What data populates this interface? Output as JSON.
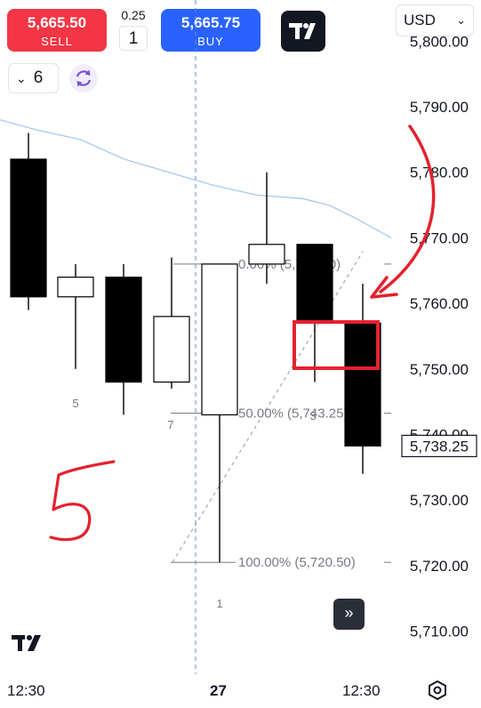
{
  "trade": {
    "sell_price": "5,665.50",
    "sell_label": "SELL",
    "buy_price": "5,665.75",
    "buy_label": "BUY",
    "spread": "0.25",
    "quantity": "1"
  },
  "currency": {
    "value": "USD"
  },
  "interval": {
    "value": "6"
  },
  "icons": {
    "logo": "tradingview-logo-icon",
    "refresh": "refresh-icon",
    "goto_realtime": "double-chevron-right-icon",
    "settings": "gear-icon",
    "dropdown": "chevron-down-icon"
  },
  "time_axis": {
    "left": "12:30",
    "center": "27",
    "right": "12:30"
  },
  "colors": {
    "sell": "#f23645",
    "buy": "#2962ff",
    "annotation": "#e5212f",
    "moving_average": "#a9c7ef",
    "fib_lines": "#787b86"
  },
  "chart_data": {
    "type": "candlestick",
    "ylim": [
      5703,
      5803
    ],
    "price_ticks": [
      "5,790.00",
      "5,780.00",
      "5,770.00",
      "5,760.00",
      "5,750.00",
      "5,740.00",
      "5,730.00",
      "5,720.00",
      "5,710.00"
    ],
    "price_tick_values": [
      5790,
      5780,
      5770,
      5760,
      5750,
      5740,
      5730,
      5720,
      5710
    ],
    "top_tick_partial": "5,800.00",
    "current_price": {
      "label": "5,738.25",
      "value": 5738.25
    },
    "candles": [
      {
        "open": 5782,
        "close": 5761,
        "high": 5786,
        "low": 5759,
        "bearish": true
      },
      {
        "open": 5761,
        "close": 5764,
        "high": 5766,
        "low": 5750,
        "bearish": false
      },
      {
        "open": 5764,
        "close": 5748,
        "high": 5766,
        "low": 5743,
        "bearish": true
      },
      {
        "open": 5748,
        "close": 5758,
        "high": 5767,
        "low": 5747,
        "bearish": false
      },
      {
        "open": 5743,
        "close": 5766,
        "high": 5766,
        "low": 5720.5,
        "bearish": false
      },
      {
        "open": 5766,
        "close": 5769,
        "high": 5780,
        "low": 5763,
        "bearish": false
      },
      {
        "open": 5769,
        "close": 5757,
        "high": 5769,
        "low": 5748,
        "bearish": true
      },
      {
        "open": 5757,
        "close": 5738.25,
        "high": 5763,
        "low": 5734,
        "bearish": true
      }
    ],
    "moving_average": [
      5788,
      5786.5,
      5785,
      5782,
      5780,
      5778,
      5776.5,
      5776,
      5775,
      5773,
      5770
    ],
    "fib_levels": [
      {
        "label": "0.00% (5,766.00)",
        "value": 5766
      },
      {
        "label": "50.00% (5,743.25)",
        "value": 5743.25
      },
      {
        "label": "100.00% (5,720.50)",
        "value": 5720.5
      }
    ],
    "bar_markers": [
      "5",
      "7",
      "3",
      "1"
    ],
    "annotation_text": "5"
  }
}
